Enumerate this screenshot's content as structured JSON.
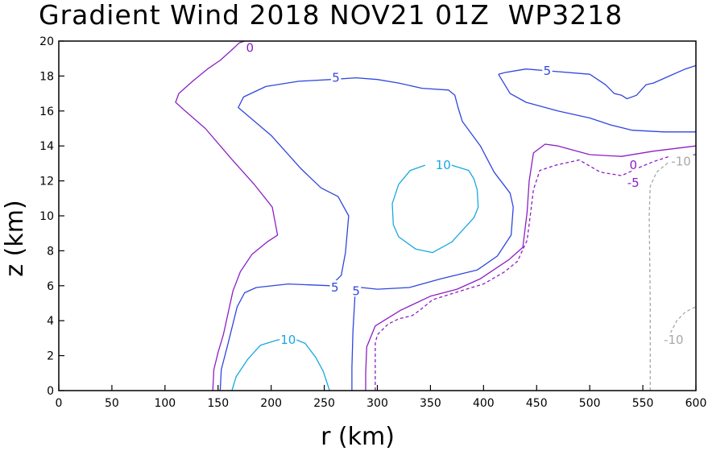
{
  "chart_data": {
    "type": "contour",
    "title": "Gradient Wind 2018 NOV21 01Z  WP3218",
    "xlabel": "r (km)",
    "ylabel": "z (km)",
    "xlim": [
      0,
      600
    ],
    "ylim": [
      0,
      20
    ],
    "xticks": [
      "0",
      "50",
      "100",
      "150",
      "200",
      "250",
      "300",
      "350",
      "400",
      "450",
      "500",
      "550",
      "600"
    ],
    "yticks": [
      "0",
      "2",
      "4",
      "6",
      "8",
      "10",
      "12",
      "14",
      "16",
      "18",
      "20"
    ],
    "grid": false,
    "contours": [
      {
        "level": 0,
        "color": "#8c1fc4",
        "dashed": false,
        "labels": [
          "0",
          "0"
        ],
        "label_positions": [
          [
            180,
            19.6
          ],
          [
            541,
            12.9
          ]
        ],
        "paths": [
          [
            [
              145,
              0
            ],
            [
              146,
              1.2
            ],
            [
              150,
              2.2
            ],
            [
              155,
              3.2
            ],
            [
              164,
              5.7
            ],
            [
              171,
              6.8
            ],
            [
              182,
              7.8
            ],
            [
              196,
              8.5
            ],
            [
              206,
              8.9
            ],
            [
              201,
              10.5
            ],
            [
              184,
              11.8
            ],
            [
              162,
              13.3
            ],
            [
              138,
              15
            ],
            [
              119,
              16
            ],
            [
              110,
              16.5
            ],
            [
              113,
              17.0
            ],
            [
              126,
              17.7
            ],
            [
              140,
              18.4
            ],
            [
              152,
              18.9
            ],
            [
              163,
              19.5
            ],
            [
              170,
              19.9
            ],
            [
              175,
              20
            ]
          ],
          [
            [
              289,
              0
            ],
            [
              289,
              1
            ],
            [
              290,
              2.5
            ],
            [
              298,
              3.7
            ],
            [
              322,
              4.6
            ],
            [
              350,
              5.4
            ],
            [
              375,
              5.8
            ],
            [
              397,
              6.4
            ],
            [
              424,
              7.5
            ],
            [
              437,
              8.2
            ],
            [
              441,
              10.2
            ],
            [
              443,
              12
            ],
            [
              447,
              13.6
            ],
            [
              458,
              14.1
            ],
            [
              470,
              14.0
            ],
            [
              500,
              13.5
            ],
            [
              530,
              13.4
            ],
            [
              560,
              13.7
            ],
            [
              600,
              14.0
            ]
          ]
        ]
      },
      {
        "level": 5,
        "color": "#3046de",
        "dashed": false,
        "labels": [
          "5",
          "5",
          "5",
          "5"
        ],
        "label_positions": [
          [
            261,
            17.9
          ],
          [
            260,
            5.9
          ],
          [
            280,
            5.7
          ],
          [
            460,
            18.3
          ]
        ],
        "paths": [
          [
            [
              152,
              0
            ],
            [
              153,
              1.2
            ],
            [
              159,
              2.6
            ],
            [
              168,
              4.8
            ],
            [
              175,
              5.6
            ],
            [
              186,
              5.9
            ],
            [
              216,
              6.1
            ],
            [
              256,
              6.0
            ],
            [
              266,
              6.6
            ],
            [
              270,
              7.9
            ],
            [
              273,
              10.0
            ],
            [
              263,
              11.1
            ],
            [
              247,
              11.6
            ],
            [
              228,
              12.7
            ],
            [
              200,
              14.6
            ],
            [
              169,
              16.2
            ],
            [
              174,
              16.8
            ],
            [
              195,
              17.4
            ],
            [
              226,
              17.7
            ],
            [
              257,
              17.8
            ],
            [
              280,
              17.9
            ],
            [
              300,
              17.8
            ],
            [
              320,
              17.6
            ],
            [
              342,
              17.3
            ],
            [
              367,
              17.2
            ],
            [
              373,
              16.9
            ],
            [
              376,
              16.2
            ],
            [
              380,
              15.4
            ],
            [
              397,
              14.0
            ],
            [
              410,
              12.5
            ],
            [
              425,
              11.3
            ],
            [
              428,
              10.5
            ],
            [
              426,
              8.9
            ],
            [
              413,
              7.7
            ],
            [
              394,
              6.9
            ],
            [
              360,
              6.4
            ],
            [
              330,
              5.9
            ],
            [
              300,
              5.8
            ],
            [
              285,
              5.9
            ],
            [
              279,
              5.5
            ],
            [
              277,
              3.4
            ],
            [
              276,
              1.3
            ],
            [
              276,
              0
            ]
          ],
          [
            [
              414,
              18.1
            ],
            [
              425,
              17.0
            ],
            [
              440,
              16.5
            ],
            [
              470,
              16.0
            ],
            [
              500,
              15.6
            ],
            [
              520,
              15.2
            ],
            [
              540,
              14.9
            ],
            [
              570,
              14.8
            ],
            [
              600,
              14.8
            ]
          ],
          [
            [
              414,
              18.1
            ],
            [
              420,
              18.2
            ],
            [
              440,
              18.4
            ],
            [
              460,
              18.3
            ],
            [
              500,
              18.1
            ],
            [
              515,
              17.5
            ],
            [
              523,
              17.0
            ],
            [
              530,
              16.9
            ],
            [
              535,
              16.7
            ],
            [
              544,
              16.9
            ],
            [
              553,
              17.5
            ],
            [
              560,
              17.6
            ],
            [
              575,
              18.0
            ],
            [
              590,
              18.4
            ],
            [
              600,
              18.6
            ]
          ]
        ]
      },
      {
        "level": 10,
        "color": "#18a8e0",
        "dashed": false,
        "labels": [
          "10",
          "10"
        ],
        "label_positions": [
          [
            216,
            2.9
          ],
          [
            362,
            12.9
          ]
        ],
        "paths": [
          [
            [
              163,
              0
            ],
            [
              167,
              0.8
            ],
            [
              178,
              1.8
            ],
            [
              190,
              2.6
            ],
            [
              206,
              2.9
            ],
            [
              220,
              3.0
            ],
            [
              232,
              2.7
            ],
            [
              242,
              1.9
            ],
            [
              249,
              1.1
            ],
            [
              255,
              0
            ]
          ],
          [
            [
              345,
              12.9
            ],
            [
              331,
              12.6
            ],
            [
              320,
              11.8
            ],
            [
              314,
              10.7
            ],
            [
              315,
              9.5
            ],
            [
              320,
              8.8
            ],
            [
              336,
              8.1
            ],
            [
              352,
              7.9
            ],
            [
              370,
              8.5
            ],
            [
              391,
              9.9
            ],
            [
              395,
              10.5
            ],
            [
              394,
              11.5
            ],
            [
              391,
              12.1
            ],
            [
              386,
              12.6
            ],
            [
              370,
              12.9
            ],
            [
              355,
              12.9
            ]
          ]
        ]
      },
      {
        "level": -5,
        "color": "#8c1fc4",
        "dashed": true,
        "labels": [
          "-5"
        ],
        "label_positions": [
          [
            541,
            11.9
          ]
        ],
        "paths": [
          [
            [
              298,
              0
            ],
            [
              298,
              2.7
            ],
            [
              300,
              3.2
            ],
            [
              310,
              3.8
            ],
            [
              320,
              4.1
            ],
            [
              333,
              4.3
            ],
            [
              340,
              4.6
            ],
            [
              352,
              5.2
            ],
            [
              373,
              5.6
            ],
            [
              400,
              6.1
            ],
            [
              420,
              6.8
            ],
            [
              432,
              7.4
            ],
            [
              441,
              8.6
            ],
            [
              444,
              10.0
            ],
            [
              447,
              11.5
            ],
            [
              453,
              12.6
            ],
            [
              468,
              12.9
            ],
            [
              490,
              13.2
            ],
            [
              510,
              12.5
            ],
            [
              530,
              12.3
            ],
            [
              548,
              12.8
            ],
            [
              560,
              13.1
            ],
            [
              575,
              13.4
            ],
            [
              600,
              13.5
            ]
          ]
        ]
      },
      {
        "level": -10,
        "color": "#a8a8a8",
        "dashed": true,
        "labels": [
          "-10",
          "-10"
        ],
        "label_positions": [
          [
            586,
            13.1
          ],
          [
            579,
            2.9
          ]
        ],
        "paths": [
          [
            [
              557,
              0
            ],
            [
              557,
              5
            ],
            [
              556,
              10.0
            ],
            [
              557,
              11.7
            ],
            [
              563,
              12.5
            ],
            [
              575,
              13.1
            ]
          ],
          [
            [
              576,
              3.3
            ],
            [
              582,
              4.0
            ],
            [
              590,
              4.5
            ],
            [
              600,
              4.8
            ]
          ]
        ]
      }
    ]
  }
}
